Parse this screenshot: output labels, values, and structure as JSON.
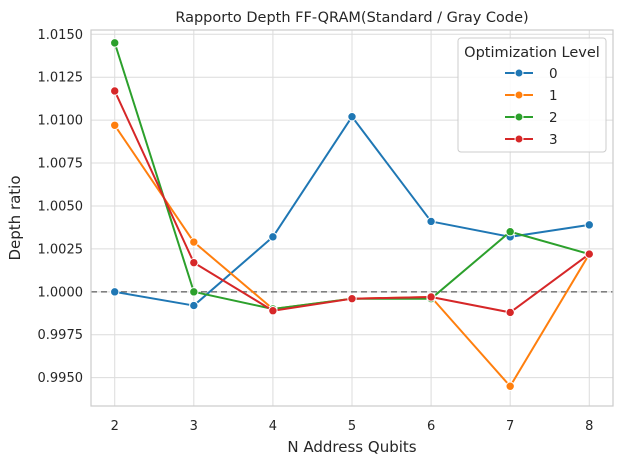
{
  "chart_data": {
    "type": "line",
    "title": "Rapporto Depth FF-QRAM(Standard / Gray Code)",
    "xlabel": "N Address Qubits",
    "ylabel": "Depth ratio",
    "x": [
      2,
      3,
      4,
      5,
      6,
      7,
      8
    ],
    "xticks": [
      "2",
      "3",
      "4",
      "5",
      "6",
      "7",
      "8"
    ],
    "xlim": [
      1.7,
      8.3
    ],
    "ylim": [
      0.99335,
      1.01525
    ],
    "yticks": [
      "0.9950",
      "0.9975",
      "1.0000",
      "1.0025",
      "1.0050",
      "1.0075",
      "1.0100",
      "1.0125",
      "1.0150"
    ],
    "reference_line": {
      "y": 1.0,
      "style": "dashed",
      "color": "#808080"
    },
    "grid": true,
    "legend": {
      "title": "Optimization Level",
      "position": "top-right"
    },
    "series": [
      {
        "name": "0",
        "color": "#1f77b4",
        "values": [
          1.0,
          0.9992,
          1.0032,
          1.0102,
          1.0041,
          1.0032,
          1.0039
        ]
      },
      {
        "name": "1",
        "color": "#ff7f0e",
        "values": [
          1.0097,
          1.0029,
          0.999,
          0.9996,
          0.9997,
          0.9945,
          1.0022
        ]
      },
      {
        "name": "2",
        "color": "#2ca02c",
        "values": [
          1.0145,
          1.0,
          0.999,
          0.9996,
          0.9996,
          1.0035,
          1.0022
        ]
      },
      {
        "name": "3",
        "color": "#d62728",
        "values": [
          1.0117,
          1.0017,
          0.9989,
          0.9996,
          0.9997,
          0.9988,
          1.0022
        ]
      }
    ]
  }
}
